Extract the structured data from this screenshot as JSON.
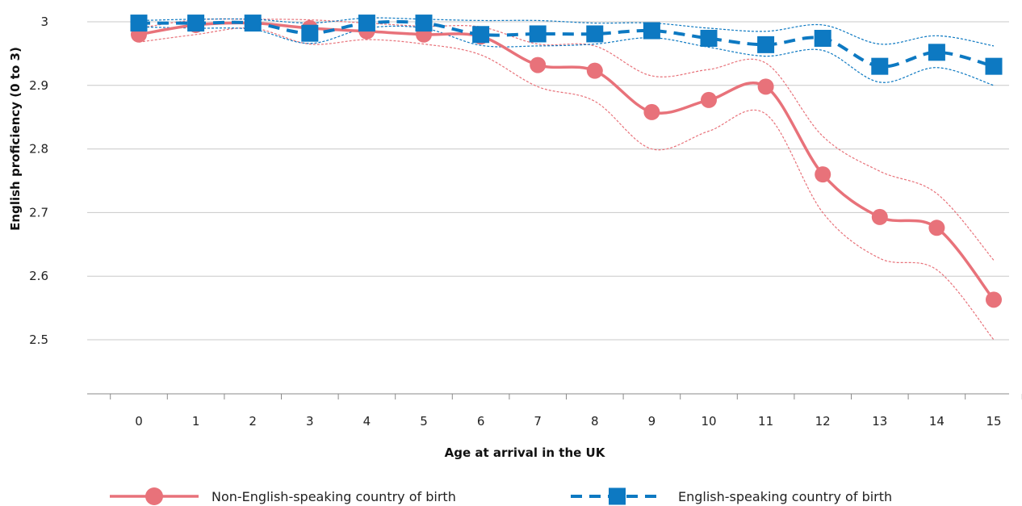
{
  "chart_data": {
    "type": "line",
    "title": "",
    "xlabel": "Age at arrival in the UK",
    "ylabel": "English proficiency (0 to 3)",
    "x": [
      0,
      1,
      2,
      3,
      4,
      5,
      6,
      7,
      8,
      9,
      10,
      11,
      12,
      13,
      14,
      15
    ],
    "xtick_labels": [
      "0",
      "1",
      "2",
      "3",
      "4",
      "5",
      "6",
      "7",
      "8",
      "9",
      "10",
      "11",
      "12",
      "13",
      "14",
      "15"
    ],
    "ylim": [
      2.42,
      3.0
    ],
    "yticks": [
      2.5,
      2.6,
      2.7,
      2.8,
      2.9,
      3
    ],
    "ytick_labels": [
      "2.5",
      "2.6",
      "2.7",
      "2.8",
      "2.9",
      "3"
    ],
    "grid": "horizontal",
    "legend_position": "bottom",
    "series": [
      {
        "name": "Non-English-speaking country of birth",
        "color": "#e8727a",
        "marker": "circle",
        "line_style": "solid",
        "values": [
          2.98,
          2.995,
          2.998,
          2.99,
          2.985,
          2.98,
          2.977,
          2.932,
          2.923,
          2.858,
          2.877,
          2.898,
          2.76,
          2.693,
          2.676,
          2.563
        ],
        "upper": [
          2.99,
          3.003,
          3.004,
          3.003,
          2.998,
          2.993,
          2.992,
          2.965,
          2.962,
          2.915,
          2.925,
          2.935,
          2.82,
          2.765,
          2.73,
          2.625
        ],
        "lower": [
          2.968,
          2.98,
          2.99,
          2.965,
          2.972,
          2.965,
          2.948,
          2.898,
          2.875,
          2.8,
          2.828,
          2.855,
          2.7,
          2.628,
          2.61,
          2.5
        ]
      },
      {
        "name": "English-speaking country of birth",
        "color": "#0d79c2",
        "marker": "square",
        "line_style": "dashed",
        "values": [
          2.998,
          2.998,
          2.998,
          2.982,
          2.998,
          2.998,
          2.98,
          2.981,
          2.981,
          2.986,
          2.974,
          2.964,
          2.974,
          2.93,
          2.952,
          2.93
        ],
        "upper": [
          3.002,
          3.004,
          3.004,
          2.998,
          3.006,
          3.004,
          3.002,
          3.002,
          2.998,
          2.998,
          2.99,
          2.985,
          2.995,
          2.965,
          2.978,
          2.962
        ],
        "lower": [
          2.992,
          2.99,
          2.988,
          2.966,
          2.99,
          2.99,
          2.963,
          2.962,
          2.965,
          2.975,
          2.96,
          2.946,
          2.955,
          2.905,
          2.928,
          2.9
        ]
      }
    ]
  }
}
